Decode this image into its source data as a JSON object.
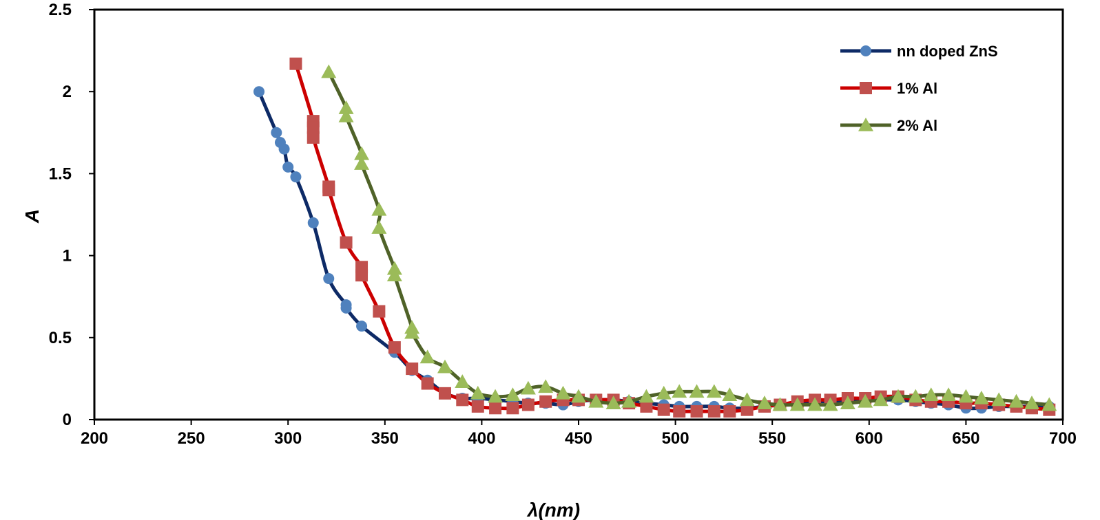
{
  "chart_data": {
    "type": "line",
    "title": "",
    "xlabel": "λ(nm)",
    "ylabel": "A",
    "xlim": [
      200,
      700
    ],
    "ylim": [
      0,
      2.5
    ],
    "xticks": [
      "200",
      "250",
      "300",
      "350",
      "400",
      "450",
      "500",
      "550",
      "600",
      "650",
      "700"
    ],
    "yticks": [
      "0",
      "0.5",
      "1",
      "1.5",
      "2",
      "2.5"
    ],
    "grid": false,
    "legend_position": "top-right",
    "series": [
      {
        "name": "nn doped ZnS",
        "line_color": "#0d2a66",
        "marker_color": "#4f81bd",
        "marker": "circle",
        "points": [
          [
            285,
            2.0
          ],
          [
            294,
            1.75
          ],
          [
            296,
            1.69
          ],
          [
            298,
            1.65
          ],
          [
            300,
            1.54
          ],
          [
            304,
            1.48
          ],
          [
            313,
            1.2
          ],
          [
            321,
            0.86
          ],
          [
            330,
            0.7
          ],
          [
            330,
            0.68
          ],
          [
            338,
            0.57
          ],
          [
            355,
            0.41
          ],
          [
            364,
            0.3
          ],
          [
            372,
            0.24
          ],
          [
            381,
            0.16
          ],
          [
            390,
            0.13
          ],
          [
            398,
            0.13
          ],
          [
            407,
            0.12
          ],
          [
            416,
            0.11
          ],
          [
            424,
            0.1
          ],
          [
            433,
            0.1
          ],
          [
            442,
            0.09
          ],
          [
            450,
            0.11
          ],
          [
            459,
            0.12
          ],
          [
            468,
            0.12
          ],
          [
            476,
            0.11
          ],
          [
            485,
            0.1
          ],
          [
            494,
            0.09
          ],
          [
            502,
            0.08
          ],
          [
            511,
            0.08
          ],
          [
            520,
            0.08
          ],
          [
            528,
            0.07
          ],
          [
            537,
            0.07
          ],
          [
            546,
            0.08
          ],
          [
            554,
            0.09
          ],
          [
            563,
            0.1
          ],
          [
            572,
            0.11
          ],
          [
            580,
            0.11
          ],
          [
            589,
            0.12
          ],
          [
            598,
            0.12
          ],
          [
            606,
            0.12
          ],
          [
            615,
            0.12
          ],
          [
            624,
            0.11
          ],
          [
            632,
            0.1
          ],
          [
            641,
            0.09
          ],
          [
            650,
            0.07
          ],
          [
            658,
            0.07
          ],
          [
            667,
            0.08
          ],
          [
            676,
            0.08
          ],
          [
            684,
            0.08
          ],
          [
            693,
            0.08
          ]
        ]
      },
      {
        "name": "1% Al",
        "line_color": "#cc0000",
        "marker_color": "#c0504d",
        "marker": "square",
        "points": [
          [
            304,
            2.17
          ],
          [
            313,
            1.82
          ],
          [
            313,
            1.78
          ],
          [
            313,
            1.72
          ],
          [
            321,
            1.42
          ],
          [
            321,
            1.4
          ],
          [
            330,
            1.08
          ],
          [
            338,
            0.93
          ],
          [
            338,
            0.88
          ],
          [
            347,
            0.66
          ],
          [
            355,
            0.44
          ],
          [
            364,
            0.31
          ],
          [
            372,
            0.22
          ],
          [
            381,
            0.16
          ],
          [
            390,
            0.12
          ],
          [
            398,
            0.08
          ],
          [
            407,
            0.07
          ],
          [
            416,
            0.07
          ],
          [
            424,
            0.09
          ],
          [
            433,
            0.11
          ],
          [
            442,
            0.12
          ],
          [
            450,
            0.12
          ],
          [
            459,
            0.12
          ],
          [
            468,
            0.12
          ],
          [
            476,
            0.1
          ],
          [
            485,
            0.08
          ],
          [
            494,
            0.06
          ],
          [
            502,
            0.05
          ],
          [
            511,
            0.05
          ],
          [
            520,
            0.05
          ],
          [
            528,
            0.05
          ],
          [
            537,
            0.06
          ],
          [
            546,
            0.08
          ],
          [
            554,
            0.09
          ],
          [
            563,
            0.11
          ],
          [
            572,
            0.12
          ],
          [
            580,
            0.12
          ],
          [
            589,
            0.13
          ],
          [
            598,
            0.13
          ],
          [
            606,
            0.14
          ],
          [
            615,
            0.14
          ],
          [
            624,
            0.12
          ],
          [
            632,
            0.11
          ],
          [
            641,
            0.11
          ],
          [
            650,
            0.1
          ],
          [
            658,
            0.1
          ],
          [
            667,
            0.09
          ],
          [
            676,
            0.08
          ],
          [
            684,
            0.07
          ],
          [
            693,
            0.06
          ]
        ]
      },
      {
        "name": "2% Al",
        "line_color": "#4f6228",
        "marker_color": "#9bbb59",
        "marker": "triangle",
        "points": [
          [
            321,
            2.12
          ],
          [
            330,
            1.9
          ],
          [
            330,
            1.85
          ],
          [
            338,
            1.62
          ],
          [
            338,
            1.56
          ],
          [
            347,
            1.28
          ],
          [
            347,
            1.17
          ],
          [
            355,
            0.92
          ],
          [
            355,
            0.88
          ],
          [
            364,
            0.56
          ],
          [
            364,
            0.53
          ],
          [
            372,
            0.38
          ],
          [
            381,
            0.32
          ],
          [
            390,
            0.23
          ],
          [
            398,
            0.16
          ],
          [
            407,
            0.14
          ],
          [
            416,
            0.15
          ],
          [
            424,
            0.19
          ],
          [
            433,
            0.2
          ],
          [
            442,
            0.16
          ],
          [
            450,
            0.14
          ],
          [
            459,
            0.11
          ],
          [
            468,
            0.1
          ],
          [
            476,
            0.11
          ],
          [
            485,
            0.14
          ],
          [
            494,
            0.16
          ],
          [
            502,
            0.17
          ],
          [
            511,
            0.17
          ],
          [
            520,
            0.17
          ],
          [
            528,
            0.15
          ],
          [
            537,
            0.12
          ],
          [
            546,
            0.1
          ],
          [
            554,
            0.09
          ],
          [
            563,
            0.09
          ],
          [
            572,
            0.09
          ],
          [
            580,
            0.09
          ],
          [
            589,
            0.1
          ],
          [
            598,
            0.11
          ],
          [
            606,
            0.12
          ],
          [
            615,
            0.14
          ],
          [
            624,
            0.14
          ],
          [
            632,
            0.15
          ],
          [
            641,
            0.15
          ],
          [
            650,
            0.14
          ],
          [
            658,
            0.13
          ],
          [
            667,
            0.12
          ],
          [
            676,
            0.11
          ],
          [
            684,
            0.1
          ],
          [
            693,
            0.09
          ]
        ]
      }
    ]
  }
}
